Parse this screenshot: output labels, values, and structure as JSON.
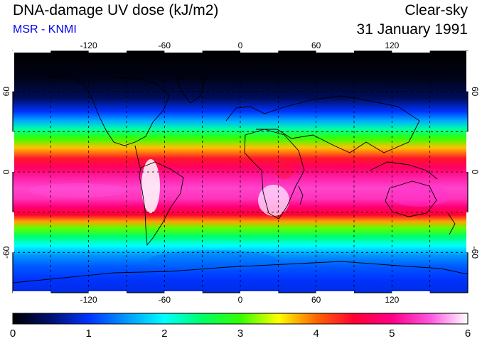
{
  "header": {
    "title": "DNA-damage UV dose (kJ/m2)",
    "credit": "MSR - KNMI",
    "condition": "Clear-sky",
    "date": "31 January 1991"
  },
  "map": {
    "projection": "equirectangular",
    "lon_range": [
      -180,
      180
    ],
    "lat_range": [
      -90,
      90
    ],
    "graticule_spacing_deg": 30,
    "top_axis_labels": [
      "-120",
      "-60",
      "0",
      "60",
      "120"
    ],
    "bottom_axis_labels": [
      "-120",
      "-60",
      "0",
      "60",
      "120"
    ],
    "left_axis_labels": [
      "60",
      "0",
      "-60"
    ],
    "right_axis_labels": [
      "60",
      "0",
      "-60"
    ],
    "lon_label_values": [
      -120,
      -60,
      0,
      60,
      120
    ],
    "lat_label_values": [
      60,
      0,
      -60
    ],
    "dose_profile": [
      {
        "lat": 90,
        "dose": 0.0
      },
      {
        "lat": 70,
        "dose": 0.1
      },
      {
        "lat": 55,
        "dose": 0.4
      },
      {
        "lat": 45,
        "dose": 1.0
      },
      {
        "lat": 38,
        "dose": 1.6
      },
      {
        "lat": 32,
        "dose": 2.3
      },
      {
        "lat": 25,
        "dose": 3.0
      },
      {
        "lat": 18,
        "dose": 3.7
      },
      {
        "lat": 10,
        "dose": 4.4
      },
      {
        "lat": 3,
        "dose": 4.8
      },
      {
        "lat": -5,
        "dose": 5.2
      },
      {
        "lat": -12,
        "dose": 5.4
      },
      {
        "lat": -20,
        "dose": 5.3
      },
      {
        "lat": -26,
        "dose": 4.9
      },
      {
        "lat": -32,
        "dose": 4.5
      },
      {
        "lat": -37,
        "dose": 3.8
      },
      {
        "lat": -42,
        "dose": 3.1
      },
      {
        "lat": -48,
        "dose": 2.5
      },
      {
        "lat": -55,
        "dose": 2.0
      },
      {
        "lat": -62,
        "dose": 1.5
      },
      {
        "lat": -70,
        "dose": 1.2
      },
      {
        "lat": -80,
        "dose": 1.0
      },
      {
        "lat": -90,
        "dose": 0.9
      }
    ]
  },
  "colorbar": {
    "min": 0,
    "max": 6,
    "tick_labels": [
      "0",
      "1",
      "2",
      "3",
      "4",
      "5",
      "6"
    ],
    "tick_values": [
      0,
      1,
      2,
      3,
      4,
      5,
      6
    ],
    "stops": [
      {
        "value": 0.0,
        "color": "#000000"
      },
      {
        "value": 0.5,
        "color": "#001070"
      },
      {
        "value": 1.0,
        "color": "#0033ff"
      },
      {
        "value": 1.5,
        "color": "#0099ff"
      },
      {
        "value": 2.0,
        "color": "#00ffff"
      },
      {
        "value": 2.5,
        "color": "#00ff66"
      },
      {
        "value": 3.0,
        "color": "#33ff00"
      },
      {
        "value": 3.5,
        "color": "#ffff00"
      },
      {
        "value": 4.0,
        "color": "#ff6600"
      },
      {
        "value": 4.5,
        "color": "#ff0033"
      },
      {
        "value": 5.0,
        "color": "#ff0088"
      },
      {
        "value": 5.5,
        "color": "#ff55dd"
      },
      {
        "value": 6.0,
        "color": "#ffffff"
      }
    ]
  },
  "colors": {
    "credit": "#0000ee",
    "frame": "#000000",
    "graticule": "#000000",
    "coastline": "#000000"
  }
}
